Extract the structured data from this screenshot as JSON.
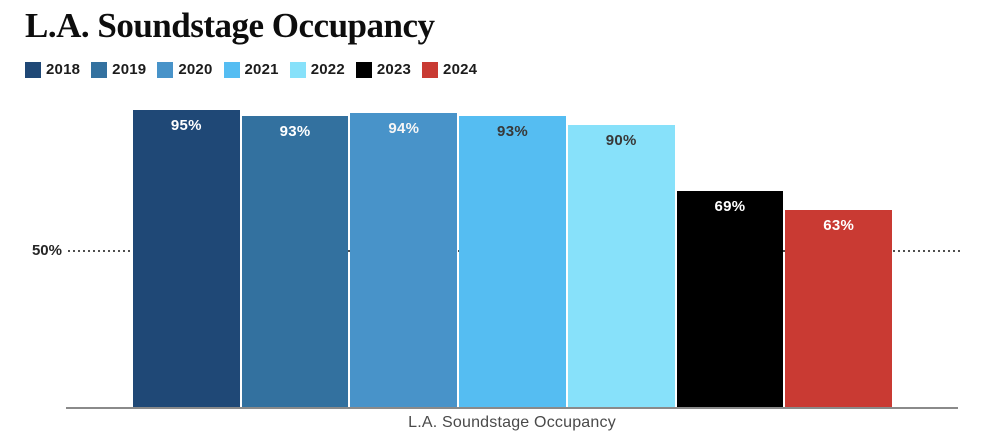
{
  "page": {
    "title": "L.A. Soundstage Occupancy"
  },
  "axis": {
    "gridline_label": "50%",
    "bottom_label": "L.A. Soundstage Occupancy"
  },
  "chart_data": {
    "type": "bar",
    "title": "L.A. Soundstage Occupancy",
    "xlabel": "L.A. Soundstage Occupancy",
    "ylim": [
      0,
      100
    ],
    "gridlines": [
      50
    ],
    "grid": "single dotted horizontal line at 50%, drawn behind bars",
    "legend_position": "top-left, horizontal row under title",
    "categories": [
      "2018",
      "2019",
      "2020",
      "2021",
      "2022",
      "2023",
      "2024"
    ],
    "values": [
      95,
      93,
      94,
      93,
      90,
      69,
      63
    ],
    "bar_labels": [
      "95%",
      "93%",
      "94%",
      "93%",
      "90%",
      "69%",
      "63%"
    ],
    "colors": [
      "#1f4876",
      "#33719f",
      "#4893c9",
      "#55bdf2",
      "#87e1fa",
      "#000000",
      "#c93a33"
    ],
    "label_colors": [
      "#ffffff",
      "#ffffff",
      "#f5f5f5",
      "#383838",
      "#383838",
      "#ffffff",
      "#ffffff"
    ],
    "axis_line_color": "#8a8a8a",
    "gridline_color": "#4f4f4f"
  }
}
